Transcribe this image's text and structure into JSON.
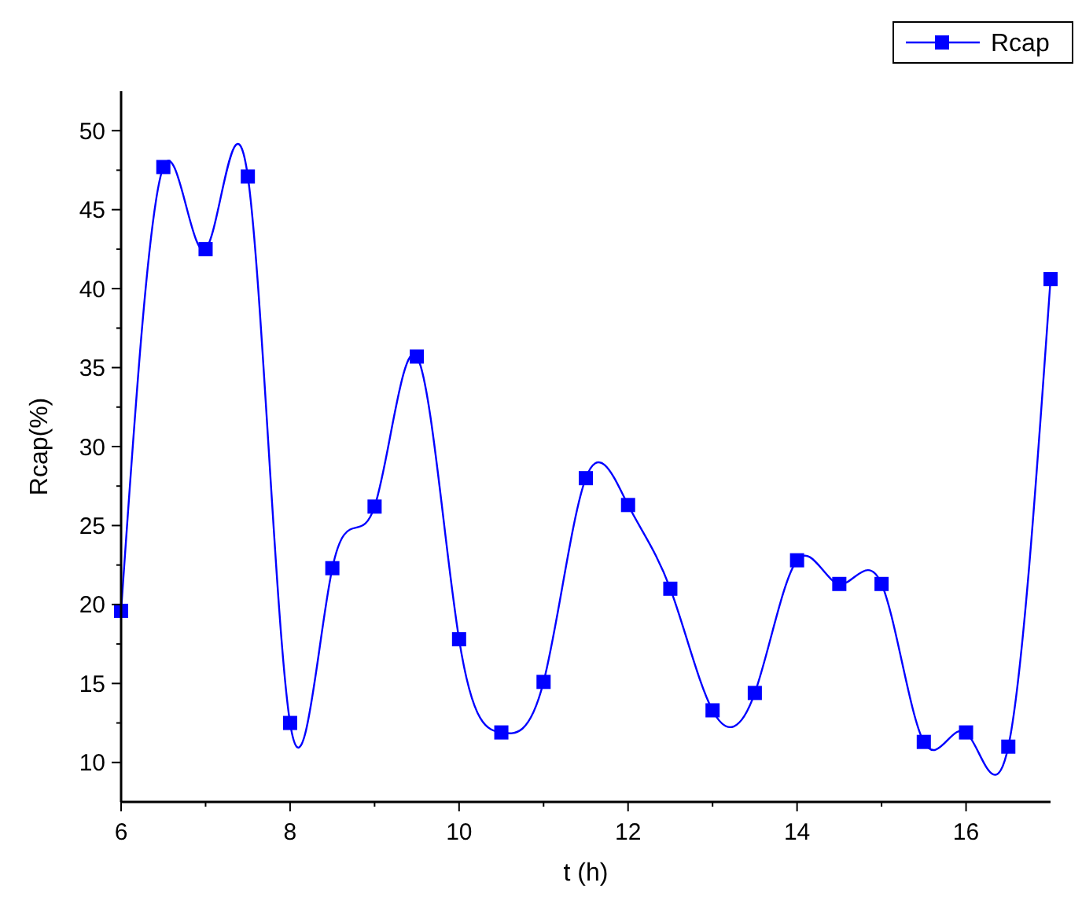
{
  "chart_data": {
    "type": "line",
    "xlabel": "t (h)",
    "ylabel": "Rcap(%)",
    "x": [
      6,
      6.5,
      7,
      7.5,
      8,
      8.5,
      9,
      9.5,
      10,
      10.5,
      11,
      11.5,
      12,
      12.5,
      13,
      13.5,
      14,
      14.5,
      15,
      15.5,
      16,
      16.5,
      17
    ],
    "series": [
      {
        "name": "Rcap",
        "color": "#0000ff",
        "values": [
          19.6,
          47.7,
          42.5,
          47.1,
          12.5,
          22.3,
          26.2,
          35.7,
          17.8,
          11.9,
          15.1,
          28.0,
          26.3,
          21.0,
          13.3,
          14.4,
          22.8,
          21.3,
          21.3,
          11.3,
          11.9,
          11.0,
          40.6
        ]
      }
    ],
    "xlim": [
      6,
      17
    ],
    "xticks": [
      6,
      8,
      10,
      12,
      14,
      16
    ],
    "ylim": [
      7.5,
      52.5
    ],
    "yticks": [
      10,
      15,
      20,
      25,
      30,
      35,
      40,
      45,
      50
    ],
    "marker": "square",
    "line_style": "solid",
    "grid": false,
    "legend": "top right"
  }
}
